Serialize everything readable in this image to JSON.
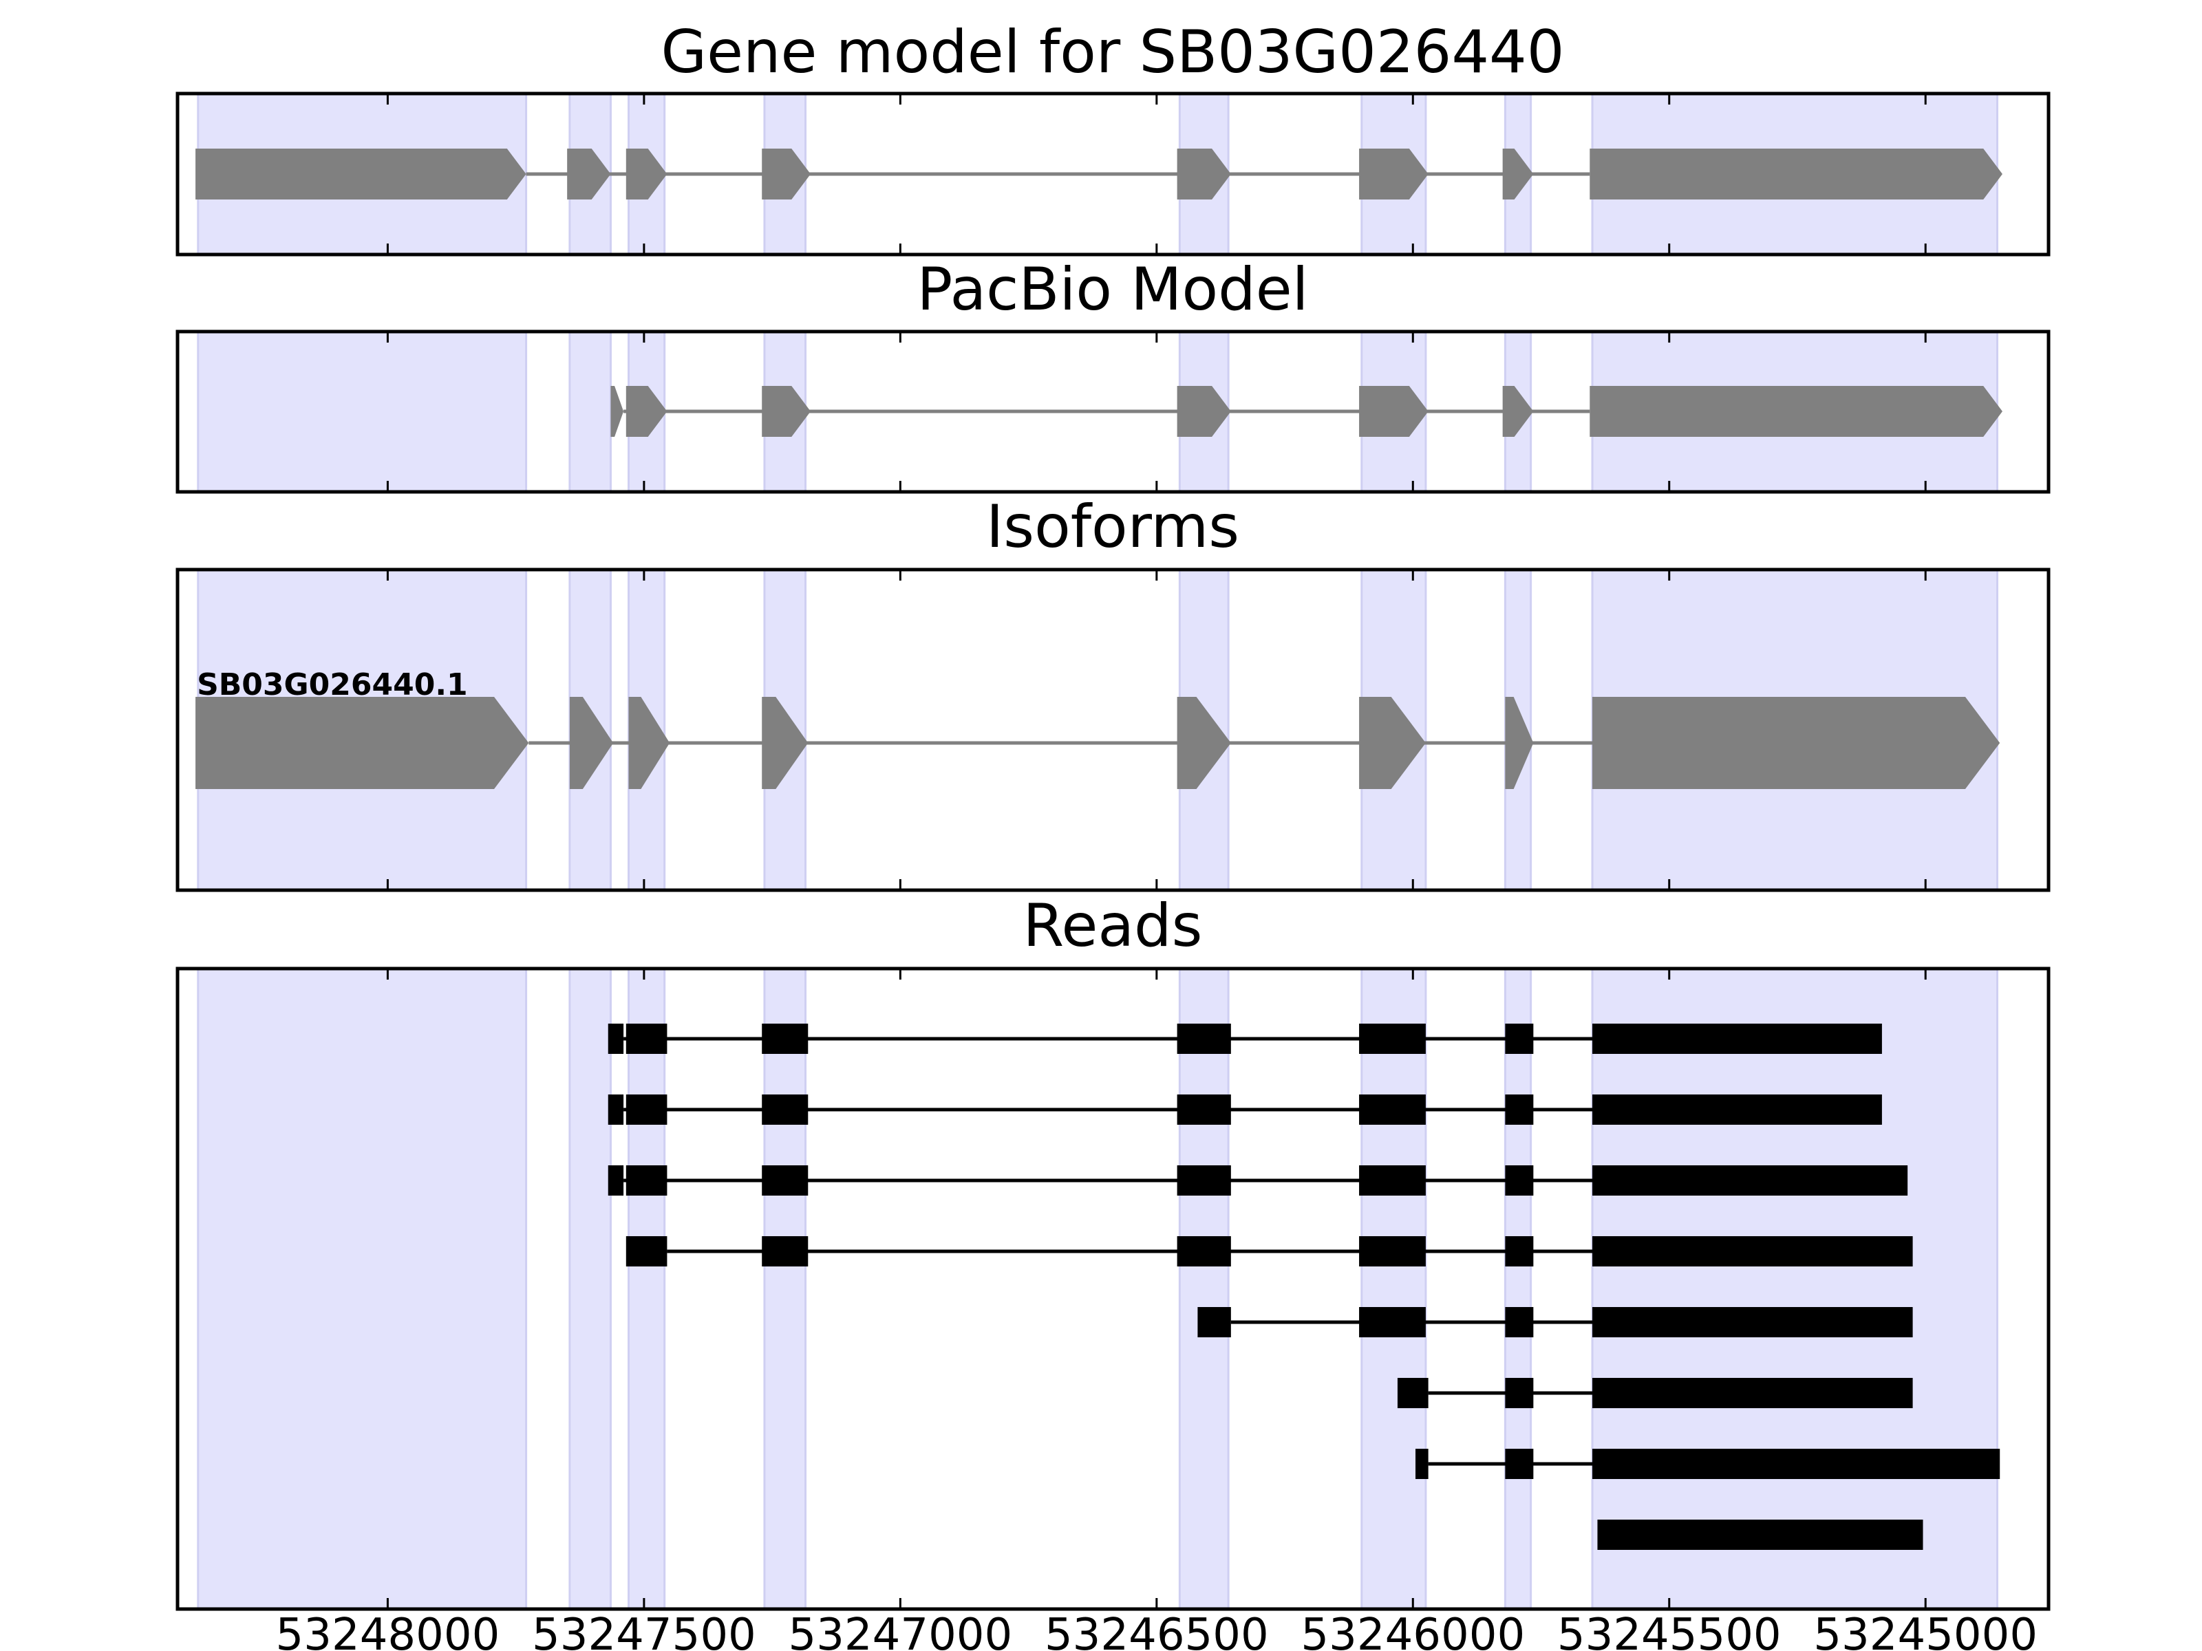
{
  "chart_data": {
    "type": "gene-track",
    "x_axis": {
      "ticks": [
        53248000,
        53247500,
        53247000,
        53246500,
        53246000,
        53245500,
        53245000
      ],
      "xlim": [
        53248410,
        53244760
      ],
      "reversed": true
    },
    "colors": {
      "exon_band": "#e3e3fc",
      "gene_feature": "#808080",
      "read_feature": "#000000",
      "frame": "#000000"
    },
    "exon_bands": [
      [
        53248370,
        53247730
      ],
      [
        53247645,
        53247565
      ],
      [
        53247530,
        53247460
      ],
      [
        53247265,
        53247185
      ],
      [
        53246455,
        53246360
      ],
      [
        53246100,
        53245975
      ],
      [
        53245820,
        53245770
      ],
      [
        53245650,
        53244860
      ]
    ],
    "panels": [
      {
        "title": "Gene model for SB03G026440",
        "tracks": [
          {
            "label": "",
            "exons": [
              [
                53248375,
                53247730
              ],
              [
                53247650,
                53247565
              ],
              [
                53247535,
                53247455
              ],
              [
                53247270,
                53247175
              ],
              [
                53246460,
                53246355
              ],
              [
                53246105,
                53245970
              ],
              [
                53245825,
                53245765
              ],
              [
                53245655,
                53244850
              ]
            ]
          }
        ]
      },
      {
        "title": "PacBio Model",
        "tracks": [
          {
            "label": "",
            "exons": [
              [
                53247565,
                53247540
              ],
              [
                53247535,
                53247455
              ],
              [
                53247270,
                53247175
              ],
              [
                53246460,
                53246355
              ],
              [
                53246105,
                53245970
              ],
              [
                53245825,
                53245765
              ],
              [
                53245655,
                53244850
              ]
            ]
          }
        ]
      },
      {
        "title": "Isoforms",
        "tracks": [
          {
            "label": "SB03G026440.1",
            "exons": [
              [
                53248375,
                53247725
              ],
              [
                53247645,
                53247560
              ],
              [
                53247530,
                53247450
              ],
              [
                53247270,
                53247180
              ],
              [
                53246460,
                53246355
              ],
              [
                53246105,
                53245975
              ],
              [
                53245820,
                53245765
              ],
              [
                53245650,
                53244855
              ]
            ]
          }
        ]
      },
      {
        "title": "Reads",
        "tracks": [
          {
            "label": "",
            "exons": [
              [
                53247570,
                53247540
              ],
              [
                53247535,
                53247455
              ],
              [
                53247270,
                53247180
              ],
              [
                53246460,
                53246355
              ],
              [
                53246105,
                53245975
              ],
              [
                53245820,
                53245765
              ],
              [
                53245650,
                53245085
              ]
            ]
          },
          {
            "label": "",
            "exons": [
              [
                53247570,
                53247540
              ],
              [
                53247535,
                53247455
              ],
              [
                53247270,
                53247180
              ],
              [
                53246460,
                53246355
              ],
              [
                53246105,
                53245975
              ],
              [
                53245820,
                53245765
              ],
              [
                53245650,
                53245085
              ]
            ]
          },
          {
            "label": "",
            "exons": [
              [
                53247570,
                53247540
              ],
              [
                53247535,
                53247455
              ],
              [
                53247270,
                53247180
              ],
              [
                53246460,
                53246355
              ],
              [
                53246105,
                53245975
              ],
              [
                53245820,
                53245765
              ],
              [
                53245650,
                53245035
              ]
            ]
          },
          {
            "label": "",
            "exons": [
              [
                53247535,
                53247455
              ],
              [
                53247270,
                53247180
              ],
              [
                53246460,
                53246355
              ],
              [
                53246105,
                53245975
              ],
              [
                53245820,
                53245765
              ],
              [
                53245650,
                53245025
              ]
            ]
          },
          {
            "label": "",
            "exons": [
              [
                53246420,
                53246355
              ],
              [
                53246105,
                53245975
              ],
              [
                53245820,
                53245765
              ],
              [
                53245650,
                53245025
              ]
            ]
          },
          {
            "label": "",
            "exons": [
              [
                53246030,
                53245970
              ],
              [
                53245820,
                53245765
              ],
              [
                53245650,
                53245025
              ]
            ]
          },
          {
            "label": "",
            "exons": [
              [
                53245995,
                53245970
              ],
              [
                53245820,
                53245765
              ],
              [
                53245650,
                53244855
              ]
            ]
          },
          {
            "label": "",
            "exons": [
              [
                53245640,
                53245005
              ]
            ]
          }
        ]
      }
    ]
  }
}
